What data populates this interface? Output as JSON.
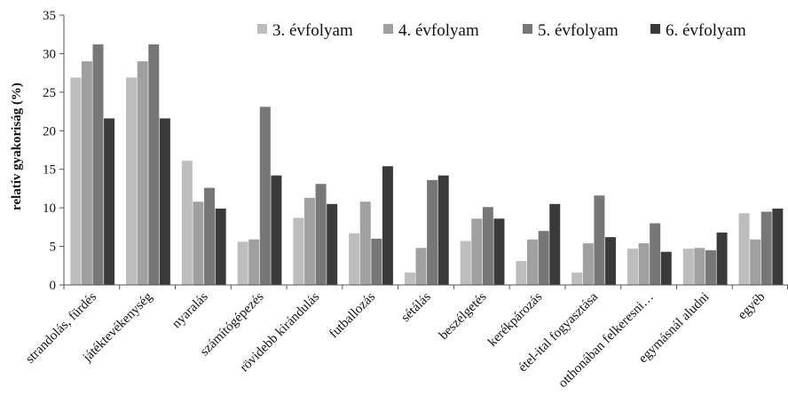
{
  "chart_data": {
    "type": "bar",
    "title": "",
    "xlabel": "",
    "ylabel": "relatív gyakoriság (%)",
    "ylim": [
      0,
      35
    ],
    "yticks": [
      0,
      5,
      10,
      15,
      20,
      25,
      30,
      35
    ],
    "grid": false,
    "legend_position": "top-right",
    "categories": [
      "strandolás, fürdés",
      "játéktevékenység",
      "nyaralás",
      "számítógépezés",
      "rövidebb kirándulás",
      "futballozás",
      "sétálás",
      "beszélgetés",
      "kerékpározás",
      "étel-ital  fogyasztása",
      "otthonában felkeresni…",
      "egymásnál aludni",
      "egyéb"
    ],
    "series": [
      {
        "name": "3. évfolyam",
        "color": "#bdbdbd",
        "values": [
          26.9,
          26.9,
          16.1,
          5.6,
          8.7,
          6.7,
          1.6,
          5.7,
          3.1,
          1.6,
          4.7,
          4.7,
          9.3
        ]
      },
      {
        "name": "4. évfolyam",
        "color": "#a0a0a0",
        "values": [
          29.0,
          29.0,
          10.8,
          5.9,
          11.3,
          10.8,
          4.8,
          8.6,
          5.9,
          5.4,
          5.4,
          4.8,
          5.9
        ]
      },
      {
        "name": "5. évfolyam",
        "color": "#777777",
        "values": [
          31.2,
          31.2,
          12.6,
          23.1,
          13.1,
          6.0,
          13.6,
          10.1,
          7.0,
          11.6,
          8.0,
          4.5,
          9.5
        ]
      },
      {
        "name": "6. évfolyam",
        "color": "#3a3a3a",
        "values": [
          21.6,
          21.6,
          9.9,
          14.2,
          10.5,
          15.4,
          14.2,
          8.6,
          10.5,
          6.2,
          4.3,
          6.8,
          9.9
        ]
      }
    ]
  }
}
